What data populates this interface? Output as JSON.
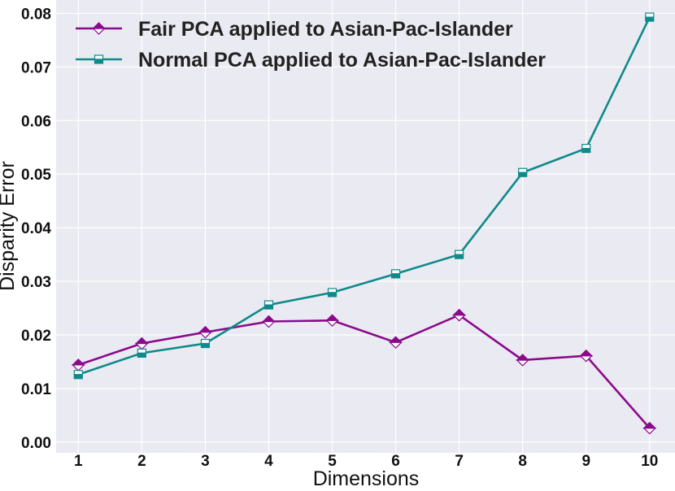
{
  "chart_data": {
    "type": "line",
    "xlabel": "Dimensions",
    "ylabel": "Disparity Error",
    "x": [
      1,
      2,
      3,
      4,
      5,
      6,
      7,
      8,
      9,
      10
    ],
    "xticks": [
      "1",
      "2",
      "3",
      "4",
      "5",
      "6",
      "7",
      "8",
      "9",
      "10"
    ],
    "yticks": [
      "0.00",
      "0.01",
      "0.02",
      "0.03",
      "0.04",
      "0.05",
      "0.06",
      "0.07",
      "0.08"
    ],
    "ylim": [
      -0.002,
      0.0825
    ],
    "xlim": [
      0.65,
      10.4
    ],
    "grid": true,
    "legend_position": "top-left",
    "series": [
      {
        "name": "Fair PCA applied to Asian-Pac-Islander",
        "color": "#8b0a8b",
        "marker": "diamond",
        "values": [
          0.0144,
          0.0184,
          0.0205,
          0.0225,
          0.0227,
          0.0186,
          0.0237,
          0.0153,
          0.0161,
          0.0026
        ]
      },
      {
        "name": "Normal PCA applied to Asian-Pac-Islander",
        "color": "#0f8a8a",
        "marker": "square",
        "values": [
          0.0126,
          0.0166,
          0.0184,
          0.0256,
          0.0279,
          0.0314,
          0.035,
          0.0503,
          0.0548,
          0.0793
        ]
      }
    ]
  }
}
